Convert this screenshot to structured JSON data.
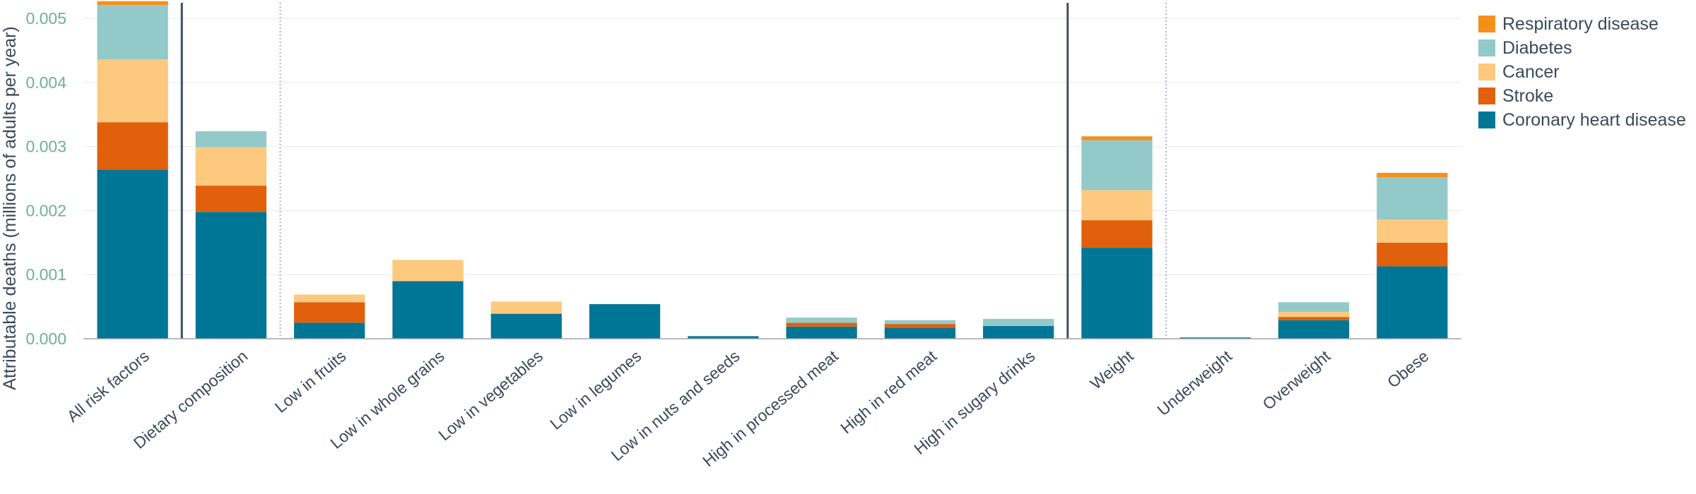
{
  "chart_data": {
    "type": "bar",
    "stacked": true,
    "ylabel": "Attributable deaths (millions of adults per year)",
    "ylim": [
      0,
      0.0052
    ],
    "yticks": [
      "0.000",
      "0.001",
      "0.002",
      "0.003",
      "0.004",
      "0.005"
    ],
    "grid": true,
    "legend_position": "top-right",
    "categories": [
      "All risk factors",
      "Dietary composition",
      "Low in fruits",
      "Low in whole grains",
      "Low in vegetables",
      "Low in legumes",
      "Low in nuts and seeds",
      "High in processed meat",
      "High in red meat",
      "High in sugary drinks",
      "Weight",
      "Underweight",
      "Overweight",
      "Obese"
    ],
    "series": [
      {
        "name": "Coronary heart disease",
        "color": "#007696",
        "values": [
          0.00264,
          0.00198,
          0.00025,
          0.0009,
          0.00039,
          0.00054,
          4e-05,
          0.00019,
          0.00017,
          0.0002,
          0.00142,
          2e-05,
          0.00029,
          0.00113
        ]
      },
      {
        "name": "Stroke",
        "color": "#e0600c",
        "values": [
          0.00074,
          0.00041,
          0.00032,
          0.0,
          0.0,
          0.0,
          0.0,
          6e-05,
          6e-05,
          0.0,
          0.00043,
          0.0,
          5e-05,
          0.00037
        ]
      },
      {
        "name": "Cancer",
        "color": "#fcc97e",
        "values": [
          0.00098,
          0.0006,
          0.00012,
          0.00033,
          0.00019,
          0.0,
          0.0,
          0.0,
          0.0,
          0.0,
          0.00047,
          0.0,
          8e-05,
          0.00036
        ]
      },
      {
        "name": "Diabetes",
        "color": "#94c9c9",
        "values": [
          0.00085,
          0.00025,
          0.0,
          0.0,
          0.0,
          0.0,
          0.0,
          8e-05,
          6e-05,
          0.00011,
          0.00078,
          0.0,
          0.00015,
          0.00066
        ]
      },
      {
        "name": "Respiratory disease",
        "color": "#f5901b",
        "values": [
          6e-05,
          0.0,
          0.0,
          0.0,
          0.0,
          0.0,
          0.0,
          0.0,
          0.0,
          0.0,
          6e-05,
          0.0,
          0.0,
          7e-05
        ]
      }
    ],
    "legend_order": [
      "Respiratory disease",
      "Diabetes",
      "Cancer",
      "Stroke",
      "Coronary heart disease"
    ],
    "solid_separators_after": [
      "All risk factors",
      "High in sugary drinks"
    ],
    "dotted_separators_after": [
      "Dietary composition",
      "Weight"
    ]
  }
}
